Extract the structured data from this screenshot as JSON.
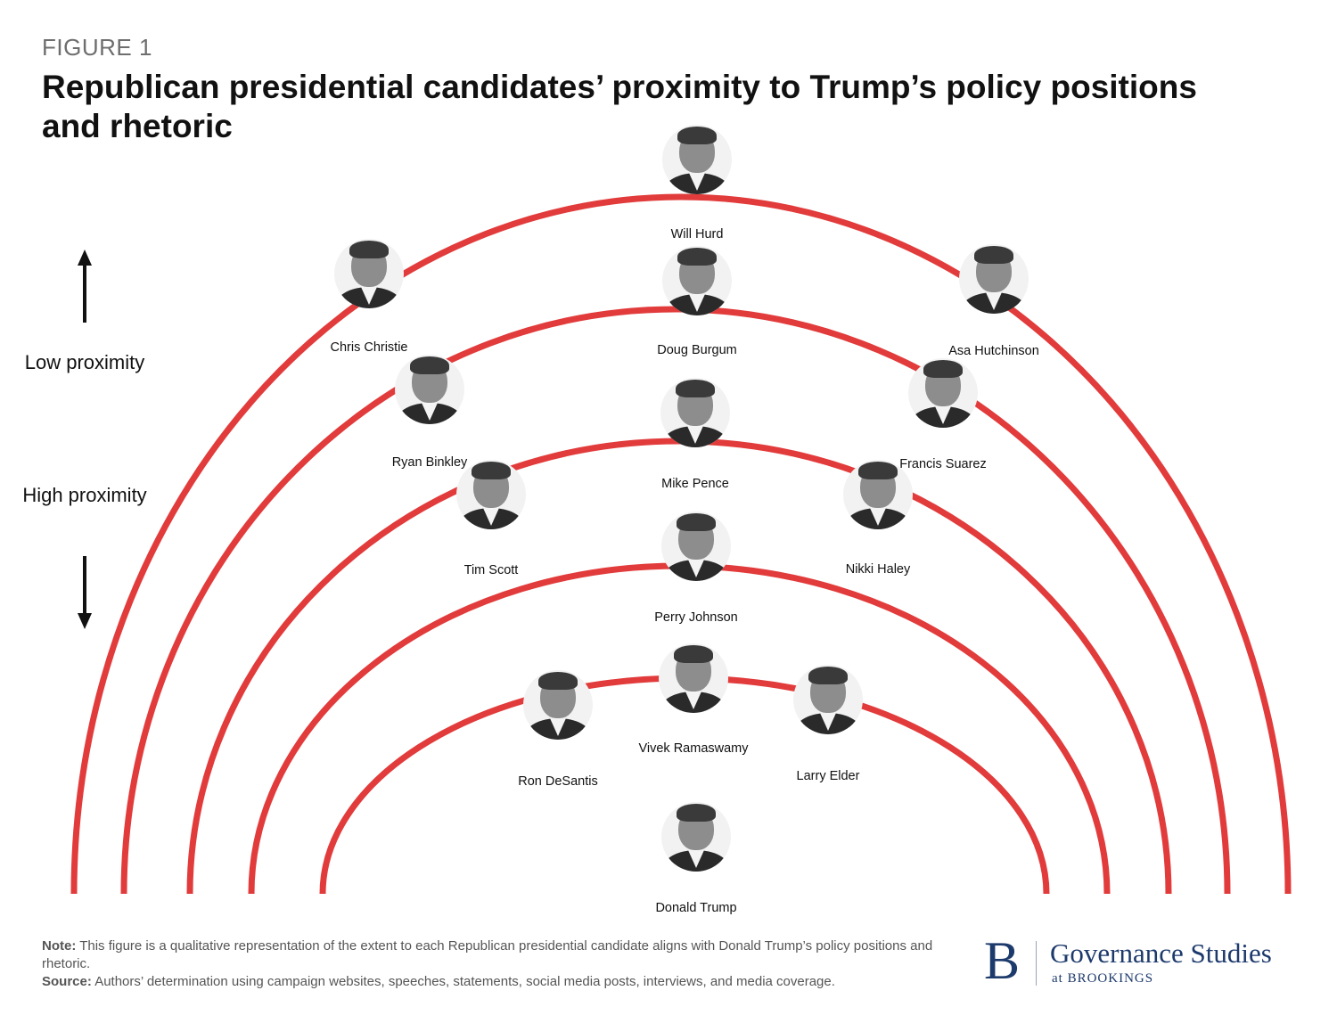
{
  "figure_label": "FIGURE 1",
  "title": "Republican presidential candidates’ proximity to Trump’s policy positions and rhetoric",
  "axis": {
    "low_label": "Low proximity",
    "high_label": "High proximity"
  },
  "colors": {
    "arc": "#e23b3b",
    "brand": "#1d3a6c",
    "arrow": "#111111"
  },
  "candidates": [
    {
      "name": "Will Hurd",
      "ring": 5
    },
    {
      "name": "Chris Christie",
      "ring": 5
    },
    {
      "name": "Asa Hutchinson",
      "ring": 5
    },
    {
      "name": "Doug Burgum",
      "ring": 4
    },
    {
      "name": "Ryan Binkley",
      "ring": 4
    },
    {
      "name": "Francis Suarez",
      "ring": 4
    },
    {
      "name": "Mike Pence",
      "ring": 3
    },
    {
      "name": "Tim Scott",
      "ring": 3
    },
    {
      "name": "Nikki Haley",
      "ring": 3
    },
    {
      "name": "Perry Johnson",
      "ring": 2
    },
    {
      "name": "Vivek Ramaswamy",
      "ring": 1
    },
    {
      "name": "Ron DeSantis",
      "ring": 1
    },
    {
      "name": "Larry Elder",
      "ring": 1
    },
    {
      "name": "Donald Trump",
      "ring": 0
    }
  ],
  "note": {
    "note_label": "Note:",
    "note_text": " This figure is a qualitative representation of the extent to each Republican presidential candidate aligns with Donald Trump’s policy positions and rhetoric.",
    "source_label": "Source:",
    "source_text": " Authors’ determination using campaign websites, speeches, statements, social media posts, interviews, and media coverage."
  },
  "logo": {
    "mark": "B",
    "main": "Governance Studies",
    "sub": "at BROOKINGS"
  }
}
